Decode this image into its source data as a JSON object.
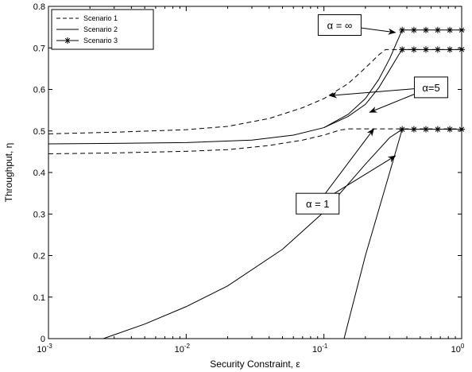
{
  "chart_data": {
    "type": "line",
    "xlabel": "Security Constraint, ε",
    "ylabel": "Throughput, η",
    "xscale": "log",
    "xlim": [
      0.001,
      1
    ],
    "ylim": [
      0,
      0.8
    ],
    "grid": false,
    "legend_position": "top-left",
    "x_ticks": [
      0.001,
      0.01,
      0.1,
      1
    ],
    "x_tick_labels": [
      {
        "base": "10",
        "exp": "-3"
      },
      {
        "base": "10",
        "exp": "-2"
      },
      {
        "base": "10",
        "exp": "-1"
      },
      {
        "base": "10",
        "exp": "0"
      }
    ],
    "y_ticks": [
      0,
      0.1,
      0.2,
      0.3,
      0.4,
      0.5,
      0.6,
      0.7,
      0.8
    ],
    "y_tick_labels": [
      "0",
      "0.1",
      "0.2",
      "0.3",
      "0.4",
      "0.5",
      "0.6",
      "0.7",
      "0.8"
    ],
    "legend": [
      {
        "label": "Scenario 1",
        "style": "dashed"
      },
      {
        "label": "Scenario 2",
        "style": "solid"
      },
      {
        "label": "Scenario 3",
        "style": "star"
      }
    ],
    "series": [
      {
        "name": "Scenario 1",
        "alpha": "5",
        "style": "dashed",
        "x": [
          0.001,
          0.003,
          0.01,
          0.02,
          0.04,
          0.07,
          0.1,
          0.15,
          0.2,
          0.25,
          0.28,
          1
        ],
        "y": [
          0.493,
          0.497,
          0.503,
          0.511,
          0.53,
          0.556,
          0.578,
          0.614,
          0.652,
          0.683,
          0.696,
          0.696
        ]
      },
      {
        "name": "Scenario 1",
        "alpha": "1",
        "style": "dashed",
        "x": [
          0.001,
          0.003,
          0.01,
          0.02,
          0.04,
          0.07,
          0.1,
          0.13,
          0.15,
          1
        ],
        "y": [
          0.445,
          0.447,
          0.451,
          0.455,
          0.465,
          0.478,
          0.49,
          0.502,
          0.505,
          0.505
        ]
      },
      {
        "name": "Scenario 2",
        "alpha": "∞",
        "style": "solid",
        "x": [
          0.001,
          0.003,
          0.01,
          0.03,
          0.06,
          0.1,
          0.15,
          0.2,
          0.25,
          0.3,
          0.35,
          0.37
        ],
        "y": [
          0.469,
          0.47,
          0.472,
          0.478,
          0.49,
          0.508,
          0.54,
          0.578,
          0.624,
          0.674,
          0.725,
          0.743
        ]
      },
      {
        "name": "Scenario 2",
        "alpha": "5",
        "style": "solid",
        "x": [
          0.1,
          0.15,
          0.2,
          0.25,
          0.3,
          0.35,
          0.37
        ],
        "y": [
          0.508,
          0.535,
          0.564,
          0.604,
          0.647,
          0.684,
          0.696
        ]
      },
      {
        "name": "Scenario 2",
        "alpha": "1",
        "style": "solid",
        "x": [
          0.0025,
          0.005,
          0.01,
          0.02,
          0.05,
          0.1,
          0.2,
          0.3,
          0.37
        ],
        "y": [
          0.0,
          0.035,
          0.077,
          0.127,
          0.215,
          0.305,
          0.42,
          0.484,
          0.504
        ]
      },
      {
        "name": "Scenario 3",
        "alpha": "∞",
        "style": "star",
        "x": [
          0.37,
          0.45,
          0.55,
          0.67,
          0.82,
          1
        ],
        "y": [
          0.743,
          0.743,
          0.743,
          0.743,
          0.743,
          0.743
        ]
      },
      {
        "name": "Scenario 3",
        "alpha": "5",
        "style": "star",
        "x": [
          0.37,
          0.45,
          0.55,
          0.67,
          0.82,
          1
        ],
        "y": [
          0.696,
          0.696,
          0.696,
          0.696,
          0.696,
          0.696
        ]
      },
      {
        "name": "Scenario 3",
        "alpha": "1",
        "style": "star",
        "x": [
          0.37,
          0.45,
          0.55,
          0.67,
          0.82,
          1
        ],
        "y": [
          0.504,
          0.504,
          0.504,
          0.504,
          0.504,
          0.504
        ]
      },
      {
        "name": "Scenario 3",
        "alpha": "1",
        "style": "solid-rise",
        "x": [
          0.14,
          0.2,
          0.3,
          0.37
        ],
        "y": [
          0.0,
          0.2,
          0.4,
          0.504
        ]
      }
    ],
    "annotations": [
      {
        "label": "α = ∞",
        "box_x": 0.13,
        "box_y": 0.755,
        "arrows": [
          {
            "x": 0.33,
            "y": 0.737
          }
        ]
      },
      {
        "label": "α=5",
        "box_x": 0.6,
        "box_y": 0.605,
        "arrows": [
          {
            "x": 0.11,
            "y": 0.585
          },
          {
            "x": 0.215,
            "y": 0.545
          }
        ]
      },
      {
        "label": "α = 1",
        "box_x": 0.09,
        "box_y": 0.325,
        "arrows": [
          {
            "x": 0.23,
            "y": 0.505
          },
          {
            "x": 0.33,
            "y": 0.44
          }
        ]
      }
    ]
  }
}
